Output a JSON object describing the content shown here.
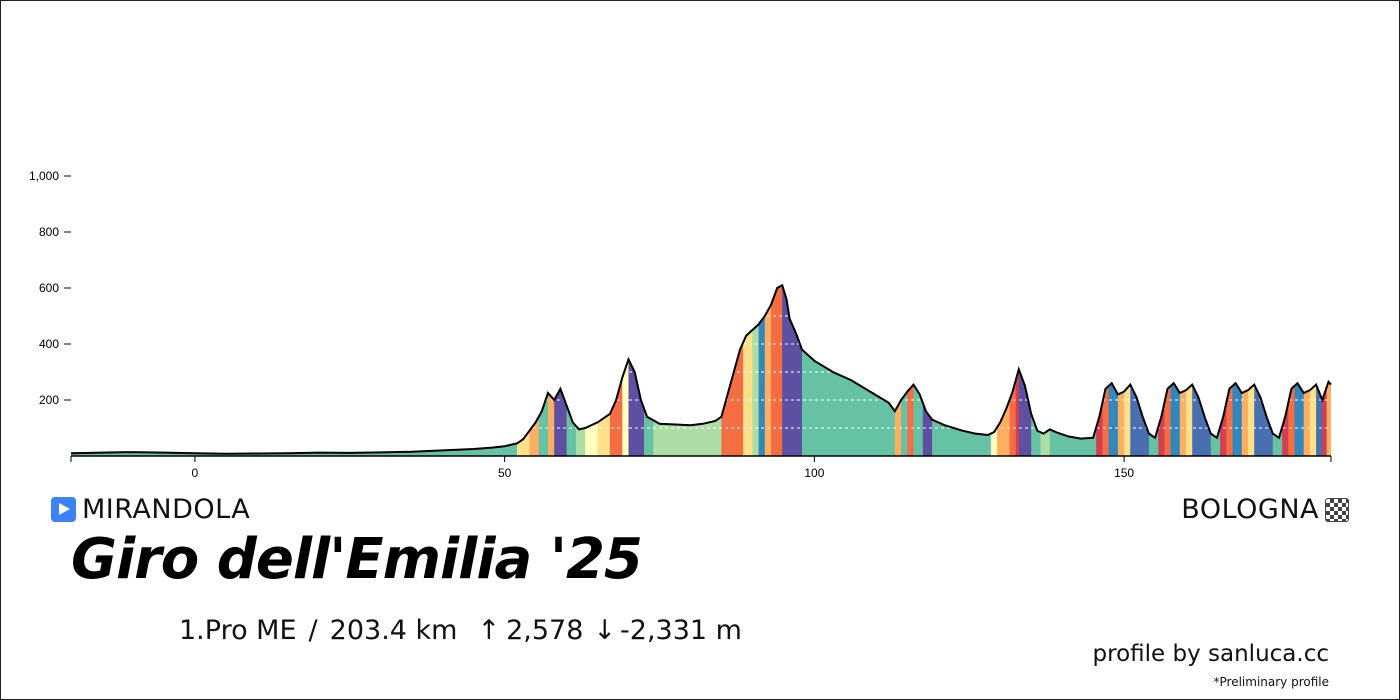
{
  "race": {
    "title": "Giro dell'Emilia '25",
    "start": "MIRANDOLA",
    "finish": "BOLOGNA",
    "category": "1.Pro ME",
    "separator": "/",
    "distance": "203.4 km",
    "ascent": "2,578",
    "descent": "-2,331 m",
    "credit": "profile by sanluca.cc",
    "note": "*Preliminary profile"
  },
  "icons": {
    "start": "play-flag-icon",
    "finish": "checkered-flag-icon",
    "ascent": "arrow-up-icon",
    "descent": "arrow-down-icon"
  },
  "chart_data": {
    "type": "area",
    "title": "",
    "xlabel": "",
    "ylabel": "",
    "xlim": [
      -20,
      183.4
    ],
    "ylim": [
      0,
      1000
    ],
    "x_ticks": [
      0,
      50,
      100,
      150
    ],
    "x_tick_labels": [
      "0",
      "50",
      "100",
      "150"
    ],
    "y_ticks": [
      200,
      400,
      600,
      800,
      1000
    ],
    "y_tick_labels": [
      "200",
      "400",
      "600",
      "800",
      "1,000"
    ],
    "grid": "dashed white horizontal lines inside the filled area",
    "legend": "none",
    "gradient_palette": {
      "teal": "#66c2a5",
      "lightgreen": "#abdda4",
      "paleyellow": "#fee08b",
      "cream": "#ffffbf",
      "orange": "#fdae61",
      "darkorange": "#f46d43",
      "red": "#d53e4f",
      "blue": "#3288bd",
      "steelblue": "#4a6fb0",
      "purple": "#5e4fa2"
    },
    "points": [
      [
        -20,
        10
      ],
      [
        -15,
        12
      ],
      [
        -10,
        14
      ],
      [
        -5,
        12
      ],
      [
        0,
        10
      ],
      [
        5,
        8
      ],
      [
        10,
        9
      ],
      [
        15,
        10
      ],
      [
        20,
        12
      ],
      [
        25,
        11
      ],
      [
        30,
        13
      ],
      [
        35,
        15
      ],
      [
        40,
        20
      ],
      [
        45,
        25
      ],
      [
        48,
        30
      ],
      [
        50,
        35
      ],
      [
        52,
        45
      ],
      [
        53,
        60
      ],
      [
        54,
        90
      ],
      [
        55,
        120
      ],
      [
        56,
        160
      ],
      [
        57,
        225
      ],
      [
        58,
        200
      ],
      [
        59,
        240
      ],
      [
        60,
        180
      ],
      [
        61,
        120
      ],
      [
        62,
        95
      ],
      [
        63,
        100
      ],
      [
        65,
        120
      ],
      [
        67,
        150
      ],
      [
        68,
        200
      ],
      [
        69,
        280
      ],
      [
        70,
        345
      ],
      [
        71,
        300
      ],
      [
        72,
        200
      ],
      [
        73,
        140
      ],
      [
        75,
        115
      ],
      [
        78,
        112
      ],
      [
        80,
        110
      ],
      [
        82,
        115
      ],
      [
        84,
        125
      ],
      [
        85,
        140
      ],
      [
        86,
        220
      ],
      [
        87,
        300
      ],
      [
        88,
        380
      ],
      [
        89,
        430
      ],
      [
        90,
        450
      ],
      [
        91,
        470
      ],
      [
        92,
        500
      ],
      [
        93,
        540
      ],
      [
        94,
        600
      ],
      [
        94.8,
        610
      ],
      [
        95.5,
        560
      ],
      [
        96,
        490
      ],
      [
        97,
        440
      ],
      [
        98,
        380
      ],
      [
        100,
        340
      ],
      [
        103,
        300
      ],
      [
        106,
        270
      ],
      [
        109,
        230
      ],
      [
        112,
        190
      ],
      [
        113,
        160
      ],
      [
        114,
        200
      ],
      [
        115,
        230
      ],
      [
        116,
        255
      ],
      [
        117,
        220
      ],
      [
        118,
        160
      ],
      [
        119,
        130
      ],
      [
        121,
        110
      ],
      [
        124,
        90
      ],
      [
        126,
        80
      ],
      [
        128,
        75
      ],
      [
        129,
        85
      ],
      [
        130,
        120
      ],
      [
        131,
        170
      ],
      [
        132,
        230
      ],
      [
        133,
        310
      ],
      [
        134,
        250
      ],
      [
        135,
        150
      ],
      [
        136,
        90
      ],
      [
        137,
        80
      ],
      [
        138,
        95
      ],
      [
        139,
        85
      ],
      [
        141,
        70
      ],
      [
        143,
        62
      ],
      [
        145,
        65
      ],
      [
        146,
        140
      ],
      [
        147,
        240
      ],
      [
        148,
        260
      ],
      [
        149,
        220
      ],
      [
        150,
        230
      ],
      [
        151,
        255
      ],
      [
        152,
        210
      ],
      [
        153,
        140
      ],
      [
        154,
        80
      ],
      [
        155,
        65
      ],
      [
        156,
        140
      ],
      [
        157,
        240
      ],
      [
        158,
        260
      ],
      [
        159,
        225
      ],
      [
        160,
        235
      ],
      [
        161,
        255
      ],
      [
        162,
        210
      ],
      [
        163,
        140
      ],
      [
        164,
        80
      ],
      [
        165,
        65
      ],
      [
        166,
        140
      ],
      [
        167,
        240
      ],
      [
        168,
        260
      ],
      [
        169,
        225
      ],
      [
        170,
        235
      ],
      [
        171,
        255
      ],
      [
        172,
        210
      ],
      [
        173,
        140
      ],
      [
        174,
        80
      ],
      [
        175,
        65
      ],
      [
        176,
        140
      ],
      [
        177,
        240
      ],
      [
        178,
        260
      ],
      [
        179,
        225
      ],
      [
        180,
        235
      ],
      [
        181,
        255
      ],
      [
        182,
        200
      ],
      [
        183,
        265
      ],
      [
        183.4,
        255
      ]
    ],
    "gradient_bands": [
      {
        "from": -20,
        "to": 52,
        "color": "teal"
      },
      {
        "from": 52,
        "to": 54,
        "color": "paleyellow"
      },
      {
        "from": 54,
        "to": 55.5,
        "color": "orange"
      },
      {
        "from": 55.5,
        "to": 57,
        "color": "teal"
      },
      {
        "from": 57,
        "to": 58,
        "color": "orange"
      },
      {
        "from": 58,
        "to": 60,
        "color": "purple"
      },
      {
        "from": 60,
        "to": 61.5,
        "color": "teal"
      },
      {
        "from": 61.5,
        "to": 63,
        "color": "lightgreen"
      },
      {
        "from": 63,
        "to": 65,
        "color": "cream"
      },
      {
        "from": 65,
        "to": 67,
        "color": "paleyellow"
      },
      {
        "from": 67,
        "to": 69,
        "color": "darkorange"
      },
      {
        "from": 69,
        "to": 70,
        "color": "cream"
      },
      {
        "from": 70,
        "to": 72.5,
        "color": "purple"
      },
      {
        "from": 72.5,
        "to": 74,
        "color": "teal"
      },
      {
        "from": 74,
        "to": 81,
        "color": "lightgreen"
      },
      {
        "from": 81,
        "to": 85,
        "color": "lightgreen"
      },
      {
        "from": 85,
        "to": 88.5,
        "color": "darkorange"
      },
      {
        "from": 88.5,
        "to": 90,
        "color": "paleyellow"
      },
      {
        "from": 90,
        "to": 91,
        "color": "lightgreen"
      },
      {
        "from": 91,
        "to": 92,
        "color": "blue"
      },
      {
        "from": 92,
        "to": 93,
        "color": "orange"
      },
      {
        "from": 93,
        "to": 94.8,
        "color": "darkorange"
      },
      {
        "from": 94.8,
        "to": 95.5,
        "color": "purple"
      },
      {
        "from": 95.5,
        "to": 98,
        "color": "purple"
      },
      {
        "from": 98,
        "to": 113,
        "color": "teal"
      },
      {
        "from": 113,
        "to": 114,
        "color": "orange"
      },
      {
        "from": 114,
        "to": 115,
        "color": "teal"
      },
      {
        "from": 115,
        "to": 116,
        "color": "darkorange"
      },
      {
        "from": 116,
        "to": 117.5,
        "color": "teal"
      },
      {
        "from": 117.5,
        "to": 119,
        "color": "purple"
      },
      {
        "from": 119,
        "to": 128.5,
        "color": "teal"
      },
      {
        "from": 128.5,
        "to": 129.5,
        "color": "cream"
      },
      {
        "from": 129.5,
        "to": 131.5,
        "color": "orange"
      },
      {
        "from": 131.5,
        "to": 132.5,
        "color": "darkorange"
      },
      {
        "from": 132.5,
        "to": 133,
        "color": "red"
      },
      {
        "from": 133,
        "to": 135,
        "color": "purple"
      },
      {
        "from": 135,
        "to": 136.5,
        "color": "teal"
      },
      {
        "from": 136.5,
        "to": 138,
        "color": "lightgreen"
      },
      {
        "from": 138,
        "to": 145.5,
        "color": "teal"
      },
      {
        "from": 145.5,
        "to": 146.5,
        "color": "red"
      },
      {
        "from": 146.5,
        "to": 147.5,
        "color": "darkorange"
      },
      {
        "from": 147.5,
        "to": 149,
        "color": "blue"
      },
      {
        "from": 149,
        "to": 150,
        "color": "orange"
      },
      {
        "from": 150,
        "to": 151,
        "color": "paleyellow"
      },
      {
        "from": 151,
        "to": 154,
        "color": "steelblue"
      },
      {
        "from": 154,
        "to": 155.5,
        "color": "teal"
      },
      {
        "from": 155.5,
        "to": 156.5,
        "color": "red"
      },
      {
        "from": 156.5,
        "to": 157.5,
        "color": "darkorange"
      },
      {
        "from": 157.5,
        "to": 159,
        "color": "blue"
      },
      {
        "from": 159,
        "to": 160,
        "color": "orange"
      },
      {
        "from": 160,
        "to": 161,
        "color": "paleyellow"
      },
      {
        "from": 161,
        "to": 164,
        "color": "steelblue"
      },
      {
        "from": 164,
        "to": 165.5,
        "color": "teal"
      },
      {
        "from": 165.5,
        "to": 166.5,
        "color": "red"
      },
      {
        "from": 166.5,
        "to": 167.5,
        "color": "darkorange"
      },
      {
        "from": 167.5,
        "to": 169,
        "color": "blue"
      },
      {
        "from": 169,
        "to": 170,
        "color": "orange"
      },
      {
        "from": 170,
        "to": 171,
        "color": "paleyellow"
      },
      {
        "from": 171,
        "to": 174,
        "color": "steelblue"
      },
      {
        "from": 174,
        "to": 175.5,
        "color": "teal"
      },
      {
        "from": 175.5,
        "to": 176.5,
        "color": "red"
      },
      {
        "from": 176.5,
        "to": 177.5,
        "color": "darkorange"
      },
      {
        "from": 177.5,
        "to": 179,
        "color": "blue"
      },
      {
        "from": 179,
        "to": 180,
        "color": "orange"
      },
      {
        "from": 180,
        "to": 181,
        "color": "paleyellow"
      },
      {
        "from": 181,
        "to": 182,
        "color": "steelblue"
      },
      {
        "from": 182,
        "to": 182.7,
        "color": "red"
      },
      {
        "from": 182.7,
        "to": 183.4,
        "color": "orange"
      }
    ]
  }
}
